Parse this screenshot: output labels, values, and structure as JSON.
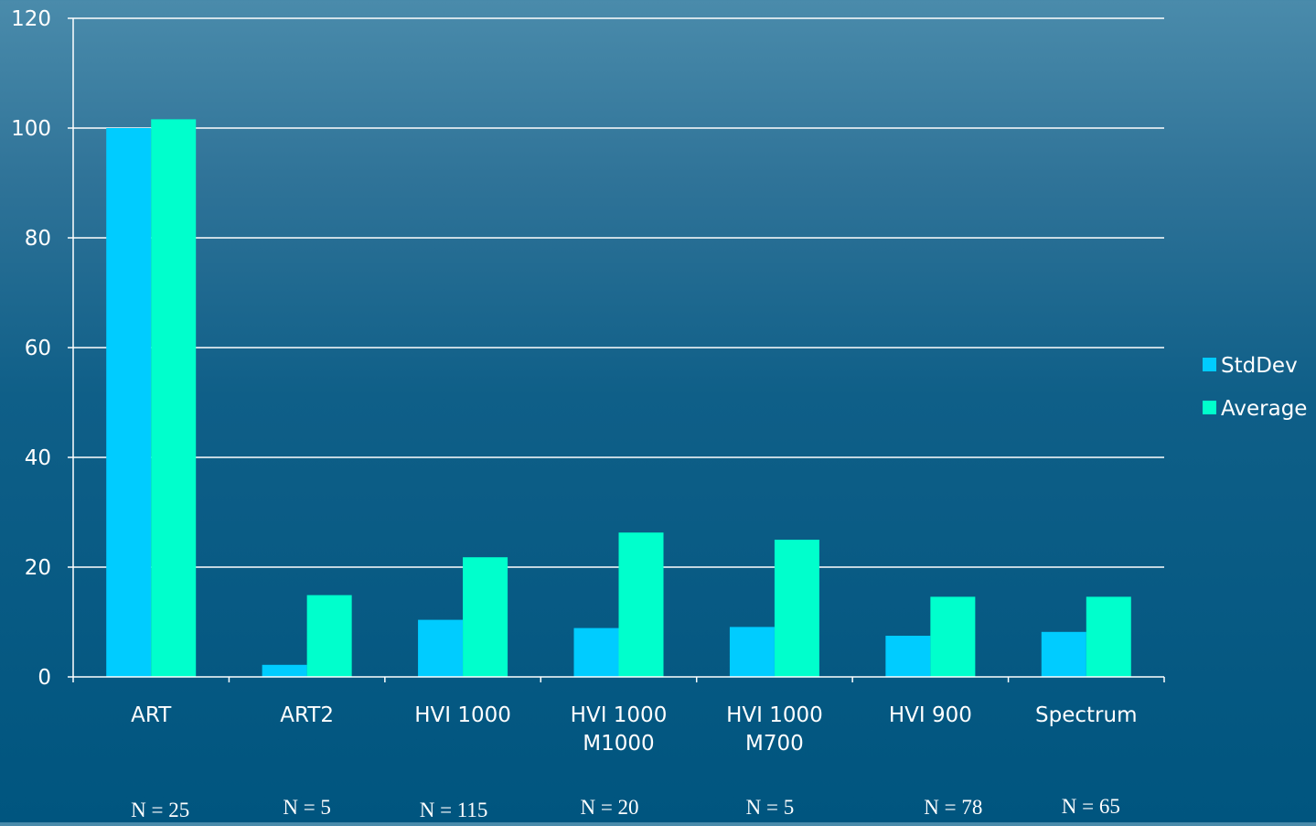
{
  "chart_data": {
    "type": "bar",
    "categories": [
      "ART",
      "ART2",
      "HVI 1000",
      "HVI 1000\nM1000",
      "HVI 1000\nM700",
      "HVI 900",
      "Spectrum"
    ],
    "series": [
      {
        "name": "StdDev",
        "values": [
          100,
          2.2,
          10.4,
          8.9,
          9.1,
          7.5,
          8.2
        ],
        "color": "#00ccff"
      },
      {
        "name": "Average",
        "values": [
          101.6,
          14.9,
          21.8,
          26.3,
          25.0,
          14.6,
          14.6
        ],
        "color": "#00ffcc"
      }
    ],
    "sample_sizes": [
      "N = 25",
      "N = 5",
      "N = 115",
      "N = 20",
      "N = 5",
      "N = 78",
      "N = 65"
    ],
    "ylim": [
      0,
      120
    ],
    "yticks": [
      0,
      20,
      40,
      60,
      80,
      100,
      120
    ],
    "grid": true,
    "legend_position": "right",
    "title": "",
    "xlabel": "",
    "ylabel": ""
  }
}
